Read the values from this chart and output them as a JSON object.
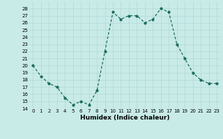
{
  "x": [
    0,
    1,
    2,
    3,
    4,
    5,
    6,
    7,
    8,
    9,
    10,
    11,
    12,
    13,
    14,
    15,
    16,
    17,
    18,
    19,
    20,
    21,
    22,
    23
  ],
  "y": [
    20,
    18.5,
    17.5,
    17,
    15.5,
    14.5,
    15,
    14.5,
    16.5,
    22,
    27.5,
    26.5,
    27,
    27,
    26,
    26.5,
    28,
    27.5,
    23,
    21,
    19,
    18,
    17.5,
    17.5
  ],
  "line_color": "#1a6b5a",
  "marker_color": "#1a6b5a",
  "bg_color": "#c8ebe8",
  "grid_color": "#b0d8d4",
  "xlabel": "Humidex (Indice chaleur)",
  "xlim": [
    -0.5,
    23.5
  ],
  "ylim": [
    14,
    29
  ],
  "yticks": [
    14,
    15,
    16,
    17,
    18,
    19,
    20,
    21,
    22,
    23,
    24,
    25,
    26,
    27,
    28
  ],
  "xticks": [
    0,
    1,
    2,
    3,
    4,
    5,
    6,
    7,
    8,
    9,
    10,
    11,
    12,
    13,
    14,
    15,
    16,
    17,
    18,
    19,
    20,
    21,
    22,
    23
  ],
  "tick_fontsize": 5,
  "xlabel_fontsize": 6.5,
  "marker_size": 2.0,
  "line_width": 0.9
}
